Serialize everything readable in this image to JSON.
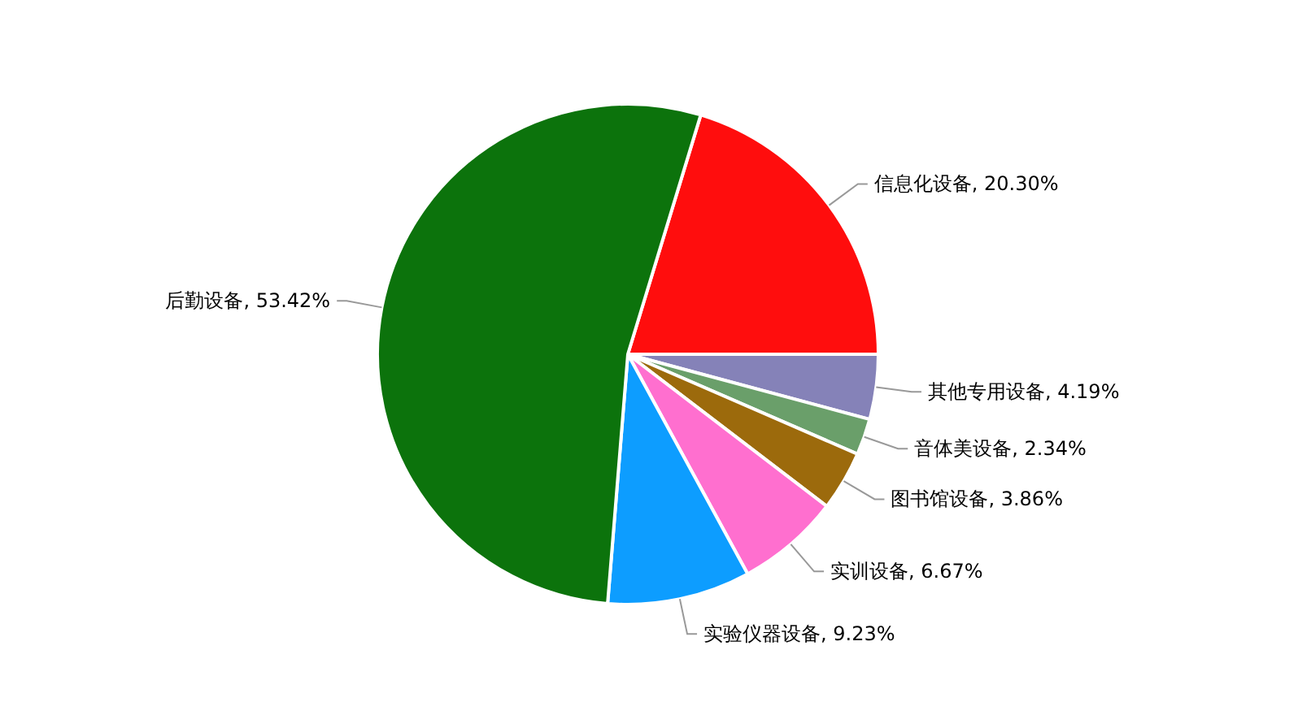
{
  "chart_data": {
    "type": "pie",
    "categories": [
      "信息化设备",
      "其他专用设备",
      "音体美设备",
      "图书馆设备",
      "实训设备",
      "实验仪器设备",
      "后勤设备"
    ],
    "values": [
      20.3,
      4.19,
      2.34,
      3.86,
      6.67,
      9.23,
      53.42
    ],
    "value_labels": [
      ", 20.30%",
      ", 4.19%",
      ", 2.34%",
      ", 3.86%",
      ", 6.67%",
      ", 9.23%",
      ", 53.42%"
    ],
    "colors": [
      "#ff0d0d",
      "#8582b8",
      "#6a9f6a",
      "#9c6a0c",
      "#ff6fcf",
      "#0d9dff",
      "#0c730c"
    ],
    "legend": false
  }
}
